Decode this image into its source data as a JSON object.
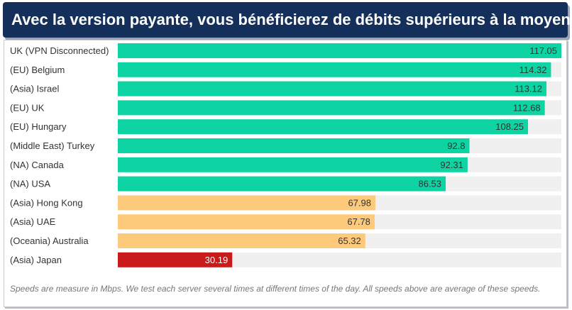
{
  "header": {
    "title": "Avec la version payante, vous bénéficierez de débits supérieurs à la moyenne"
  },
  "chart_data": {
    "type": "bar",
    "orientation": "horizontal",
    "categories": [
      "UK (VPN Disconnected)",
      "(EU) Belgium",
      "(Asia) Israel",
      "(EU) UK",
      "(EU) Hungary",
      "(Middle East) Turkey",
      "(NA) Canada",
      "(NA) USA",
      "(Asia) Hong Kong",
      "(Asia) UAE",
      "(Oceania) Australia",
      "(Asia) Japan"
    ],
    "values": [
      117.05,
      114.32,
      113.12,
      112.68,
      108.25,
      92.8,
      92.31,
      86.53,
      67.98,
      67.78,
      65.32,
      30.19
    ],
    "value_labels": [
      "117.05",
      "114.32",
      "113.12",
      "112.68",
      "108.25",
      "92.8",
      "92.31",
      "86.53",
      "67.98",
      "67.78",
      "65.32",
      "30.19"
    ],
    "xlim": [
      0,
      117.05
    ],
    "grid": false,
    "legend": "none",
    "colors": {
      "fast": "#0dd4a2",
      "medium": "#fdca7c",
      "slow": "#c81a1a",
      "track": "#f0f0f0",
      "label_dark": "#333333",
      "label_light": "#ffffff"
    },
    "bar_color_keys": [
      "fast",
      "fast",
      "fast",
      "fast",
      "fast",
      "fast",
      "fast",
      "fast",
      "medium",
      "medium",
      "medium",
      "slow"
    ]
  },
  "footnote": "Speeds are measure in Mbps. We test each server several times at different times of the day. All speeds above are average of these speeds."
}
